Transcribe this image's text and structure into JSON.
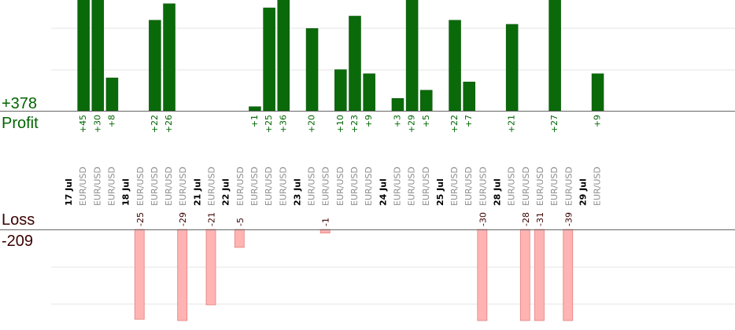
{
  "chart_data": {
    "type": "bar",
    "colors": {
      "profit_bar": "#0a6a0a",
      "profit_bar_edge": "#004d00",
      "profit_label": "#006400",
      "loss_bar": "#ffb3b3",
      "loss_bar_edge": "#e57f7f",
      "loss_label": "#3a0000",
      "axis": "#666666",
      "grid": "#e6e6e6",
      "tick_text": "#8c8c8c"
    },
    "profit": {
      "total_label": "+378",
      "title": "Profit",
      "ylim": [
        0,
        27
      ],
      "grid": true
    },
    "loss": {
      "total_label": "-209",
      "title": "Loss",
      "ylim": [
        0,
        39
      ],
      "grid": true
    },
    "categories": [
      {
        "label": "17 Jul",
        "date_header": true
      },
      {
        "label": "EUR/USD",
        "profit": 45,
        "profit_label": "+45"
      },
      {
        "label": "EUR/USD",
        "profit": 30,
        "profit_label": "+30"
      },
      {
        "label": "EUR/USD",
        "profit": 8,
        "profit_label": "+8"
      },
      {
        "label": "18 Jul",
        "date_header": true
      },
      {
        "label": "EUR/USD",
        "loss": 25,
        "loss_label": "-25"
      },
      {
        "label": "EUR/USD",
        "profit": 22,
        "profit_label": "+22"
      },
      {
        "label": "EUR/USD",
        "profit": 26,
        "profit_label": "+26"
      },
      {
        "label": "EUR/USD",
        "loss": 29,
        "loss_label": "-29"
      },
      {
        "label": "21 Jul",
        "date_header": true
      },
      {
        "label": "EUR/USD",
        "loss": 21,
        "loss_label": "-21"
      },
      {
        "label": "22 Jul",
        "date_header": true
      },
      {
        "label": "EUR/USD",
        "loss": 5,
        "loss_label": "-5"
      },
      {
        "label": "EUR/USD",
        "profit": 1,
        "profit_label": "+1"
      },
      {
        "label": "EUR/USD",
        "profit": 25,
        "profit_label": "+25"
      },
      {
        "label": "EUR/USD",
        "profit": 36,
        "profit_label": "+36"
      },
      {
        "label": "23 Jul",
        "date_header": true
      },
      {
        "label": "EUR/USD",
        "profit": 20,
        "profit_label": "+20"
      },
      {
        "label": "EUR/USD",
        "loss": 1,
        "loss_label": "-1"
      },
      {
        "label": "EUR/USD",
        "profit": 10,
        "profit_label": "+10"
      },
      {
        "label": "EUR/USD",
        "profit": 23,
        "profit_label": "+23"
      },
      {
        "label": "EUR/USD",
        "profit": 9,
        "profit_label": "+9"
      },
      {
        "label": "24 Jul",
        "date_header": true
      },
      {
        "label": "EUR/USD",
        "profit": 3,
        "profit_label": "+3"
      },
      {
        "label": "EUR/USD",
        "profit": 29,
        "profit_label": "+29"
      },
      {
        "label": "EUR/USD",
        "profit": 5,
        "profit_label": "+5"
      },
      {
        "label": "25 Jul",
        "date_header": true
      },
      {
        "label": "EUR/USD",
        "profit": 22,
        "profit_label": "+22"
      },
      {
        "label": "EUR/USD",
        "profit": 7,
        "profit_label": "+7"
      },
      {
        "label": "EUR/USD",
        "loss": 30,
        "loss_label": "-30"
      },
      {
        "label": "28 Jul",
        "date_header": true
      },
      {
        "label": "EUR/USD",
        "profit": 21,
        "profit_label": "+21"
      },
      {
        "label": "EUR/USD",
        "loss": 28,
        "loss_label": "-28"
      },
      {
        "label": "EUR/USD",
        "loss": 31,
        "loss_label": "-31"
      },
      {
        "label": "EUR/USD",
        "profit": 27,
        "profit_label": "+27"
      },
      {
        "label": "EUR/USD",
        "loss": 39,
        "loss_label": "-39"
      },
      {
        "label": "29 Jul",
        "date_header": true
      },
      {
        "label": "EUR/USD",
        "profit": 9,
        "profit_label": "+9"
      }
    ]
  }
}
